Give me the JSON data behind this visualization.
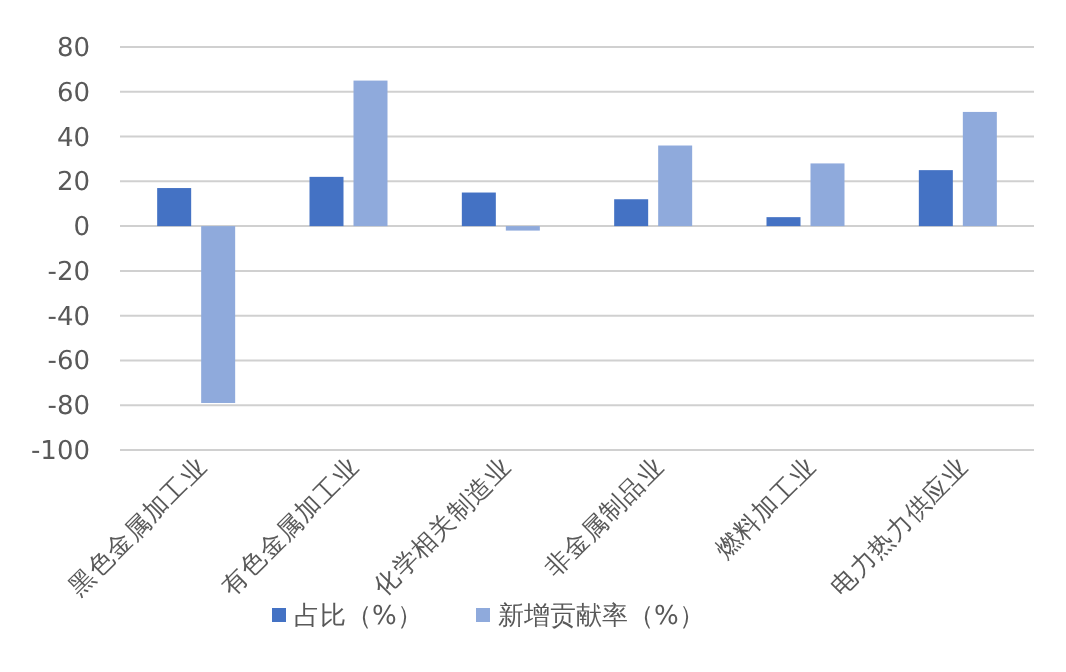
{
  "chart_data": {
    "type": "bar",
    "categories": [
      "黑色金属加工业",
      "有色金属加工业",
      "化学相关制造业",
      "非金属制品业",
      "燃料加工业",
      "电力热力供应业"
    ],
    "series": [
      {
        "name": "占比（%）",
        "color": "#4472c4",
        "values": [
          17,
          22,
          15,
          12,
          4,
          25
        ]
      },
      {
        "name": "新增贡献率（%）",
        "color": "#8faadc",
        "values": [
          -79,
          65,
          -2,
          36,
          28,
          51
        ]
      }
    ],
    "ylim": [
      -100,
      80
    ],
    "yticks": [
      -100,
      -80,
      -60,
      -40,
      -20,
      0,
      20,
      40,
      60,
      80
    ],
    "grid": "y",
    "legend": "bottom"
  }
}
